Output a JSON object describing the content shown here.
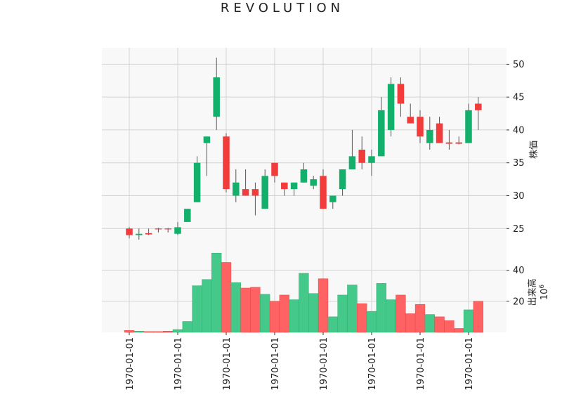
{
  "chart_data": {
    "type": "candlestick",
    "title": "REVOLUTION",
    "price_panel": {
      "ylabel": "株価",
      "ylim": [
        21.5,
        52.5
      ],
      "yticks": [
        25,
        30,
        35,
        40,
        45,
        50
      ],
      "grid": true
    },
    "volume_panel": {
      "ylabel": "出来高",
      "scale_label": "10",
      "scale_exponent": "6",
      "ylim": [
        0,
        52
      ],
      "yticks": [
        20,
        40
      ],
      "grid": true
    },
    "x_tick_labels": [
      "1970-01-01",
      "1970-01-01",
      "1970-01-01",
      "1970-01-01",
      "1970-01-01",
      "1970-01-01",
      "1970-01-01",
      "1970-01-01"
    ],
    "x_tick_positions": [
      0,
      5,
      10,
      15,
      20,
      25,
      30,
      35
    ],
    "colors": {
      "up": "#12b06a",
      "down": "#f23b3b",
      "volume_up": "#44c98a",
      "volume_down": "#ff6262",
      "wick": "#555555",
      "panel_bg": "#f8f8f8",
      "grid": "#d3d3d3"
    },
    "candles": [
      {
        "open": 25.0,
        "high": 25.2,
        "low": 23.5,
        "close": 24.0,
        "volume": 1.2
      },
      {
        "open": 24.0,
        "high": 25.0,
        "low": 23.3,
        "close": 24.2,
        "volume": 0.8
      },
      {
        "open": 24.3,
        "high": 25.0,
        "low": 24.0,
        "close": 24.1,
        "volume": 0.5
      },
      {
        "open": 25.0,
        "high": 25.1,
        "low": 24.4,
        "close": 24.9,
        "volume": 0.5
      },
      {
        "open": 25.0,
        "high": 25.1,
        "low": 24.4,
        "close": 24.9,
        "volume": 0.8
      },
      {
        "open": 24.2,
        "high": 26.0,
        "low": 24.0,
        "close": 25.2,
        "volume": 1.8
      },
      {
        "open": 26.0,
        "high": 28.0,
        "low": 26.0,
        "close": 28.0,
        "volume": 7.0
      },
      {
        "open": 29.0,
        "high": 36.0,
        "low": 29.0,
        "close": 35.0,
        "volume": 30.0
      },
      {
        "open": 38.0,
        "high": 39.0,
        "low": 33.0,
        "close": 39.0,
        "volume": 34.0
      },
      {
        "open": 42.0,
        "high": 51.0,
        "low": 40.0,
        "close": 48.0,
        "volume": 51.0
      },
      {
        "open": 39.0,
        "high": 39.5,
        "low": 30.5,
        "close": 31.0,
        "volume": 45.0
      },
      {
        "open": 30.0,
        "high": 34.0,
        "low": 29.0,
        "close": 32.0,
        "volume": 32.0
      },
      {
        "open": 31.0,
        "high": 34.0,
        "low": 30.0,
        "close": 30.0,
        "volume": 28.5
      },
      {
        "open": 31.0,
        "high": 32.0,
        "low": 27.0,
        "close": 30.0,
        "volume": 29.0
      },
      {
        "open": 28.0,
        "high": 34.0,
        "low": 28.0,
        "close": 33.0,
        "volume": 24.5
      },
      {
        "open": 35.0,
        "high": 35.0,
        "low": 32.0,
        "close": 33.0,
        "volume": 20.0
      },
      {
        "open": 32.0,
        "high": 32.0,
        "low": 30.0,
        "close": 31.0,
        "volume": 24.0
      },
      {
        "open": 31.0,
        "high": 32.0,
        "low": 30.0,
        "close": 32.0,
        "volume": 21.0
      },
      {
        "open": 32.0,
        "high": 35.0,
        "low": 32.0,
        "close": 34.0,
        "volume": 38.0
      },
      {
        "open": 31.5,
        "high": 33.0,
        "low": 31.0,
        "close": 32.5,
        "volume": 25.0
      },
      {
        "open": 33.0,
        "high": 34.0,
        "low": 28.0,
        "close": 28.0,
        "volume": 34.5
      },
      {
        "open": 29.0,
        "high": 30.0,
        "low": 28.0,
        "close": 30.0,
        "volume": 10.0
      },
      {
        "open": 31.0,
        "high": 34.0,
        "low": 30.0,
        "close": 34.0,
        "volume": 24.0
      },
      {
        "open": 34.0,
        "high": 40.0,
        "low": 34.0,
        "close": 36.0,
        "volume": 30.5
      },
      {
        "open": 37.0,
        "high": 39.0,
        "low": 34.0,
        "close": 35.0,
        "volume": 18.5
      },
      {
        "open": 35.0,
        "high": 37.0,
        "low": 33.0,
        "close": 36.0,
        "volume": 13.5
      },
      {
        "open": 36.0,
        "high": 45.0,
        "low": 36.0,
        "close": 43.0,
        "volume": 31.5
      },
      {
        "open": 40.0,
        "high": 48.0,
        "low": 39.0,
        "close": 47.0,
        "volume": 21.0
      },
      {
        "open": 47.0,
        "high": 48.0,
        "low": 42.0,
        "close": 44.0,
        "volume": 24.0
      },
      {
        "open": 42.0,
        "high": 44.0,
        "low": 41.0,
        "close": 41.0,
        "volume": 12.0
      },
      {
        "open": 42.0,
        "high": 43.0,
        "low": 38.0,
        "close": 39.0,
        "volume": 18.0
      },
      {
        "open": 38.0,
        "high": 42.0,
        "low": 37.0,
        "close": 40.0,
        "volume": 11.5
      },
      {
        "open": 41.0,
        "high": 42.0,
        "low": 38.0,
        "close": 38.0,
        "volume": 10.0
      },
      {
        "open": 38.1,
        "high": 40.0,
        "low": 37.0,
        "close": 37.9,
        "volume": 7.5
      },
      {
        "open": 38.1,
        "high": 39.0,
        "low": 37.8,
        "close": 37.9,
        "volume": 2.5
      },
      {
        "open": 38.0,
        "high": 44.0,
        "low": 38.0,
        "close": 43.0,
        "volume": 14.5
      },
      {
        "open": 44.0,
        "high": 45.0,
        "low": 40.0,
        "close": 43.0,
        "volume": 20.0
      }
    ]
  }
}
